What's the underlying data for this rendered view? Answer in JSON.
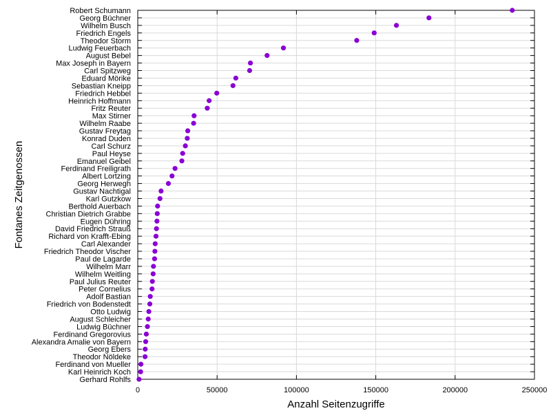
{
  "chart_data": {
    "type": "scatter",
    "xlabel": "Anzahl Seitenzugriffe",
    "ylabel": "Fontanes Zeitgenossen",
    "xlim": [
      0,
      250000
    ],
    "xticks": [
      0,
      50000,
      100000,
      150000,
      200000,
      250000
    ],
    "xtick_labels": [
      "0",
      "50000",
      "100000",
      "150000",
      "200000",
      "250000"
    ],
    "grid": true,
    "marker_color": "#8a00d4",
    "categories": [
      "Robert Schumann",
      "Georg Büchner",
      "Wilhelm Busch",
      "Friedrich Engels",
      "Theodor Storm",
      "Ludwig Feuerbach",
      "August Bebel",
      "Max Joseph in Bayern",
      "Carl Spitzweg",
      "Eduard Mörike",
      "Sebastian Kneipp",
      "Friedrich Hebbel",
      "Heinrich Hoffmann",
      "Fritz Reuter",
      "Max Stirner",
      "Wilhelm Raabe",
      "Gustav Freytag",
      "Konrad Duden",
      "Carl Schurz",
      "Paul Heyse",
      "Emanuel Geibel",
      "Ferdinand Freiligrath",
      "Albert Lortzing",
      "Georg Herwegh",
      "Gustav Nachtigal",
      "Karl Gutzkow",
      "Berthold Auerbach",
      "Christian Dietrich Grabbe",
      "Eugen Dühring",
      "David Friedrich Strauß",
      "Richard von Krafft-Ebing",
      "Carl Alexander",
      "Friedrich Theodor Vischer",
      "Paul de Lagarde",
      "Wilhelm Marr",
      "Wilhelm Weitling",
      "Paul Julius Reuter",
      "Peter Cornelius",
      "Adolf Bastian",
      "Friedrich von Bodenstedt",
      "Otto Ludwig",
      "August Schleicher",
      "Ludwig Büchner",
      "Ferdinand Gregorovius",
      "Alexandra Amalie von Bayern",
      "Georg Ebers",
      "Theodor Nöldeke",
      "Ferdinand von Mueller",
      "Karl Heinrich Koch",
      "Gerhard Rohlfs"
    ],
    "values": [
      236000,
      183500,
      163000,
      149000,
      138000,
      91800,
      81500,
      71000,
      70500,
      61800,
      60000,
      49800,
      45000,
      43800,
      35500,
      35200,
      31500,
      31200,
      30000,
      28300,
      27800,
      23500,
      21600,
      19300,
      14700,
      14000,
      12500,
      12300,
      12100,
      11800,
      11500,
      11000,
      10800,
      10600,
      9900,
      9700,
      9200,
      9000,
      7900,
      7600,
      7000,
      6600,
      6100,
      5400,
      5000,
      4700,
      4600,
      2000,
      1800,
      800
    ]
  }
}
